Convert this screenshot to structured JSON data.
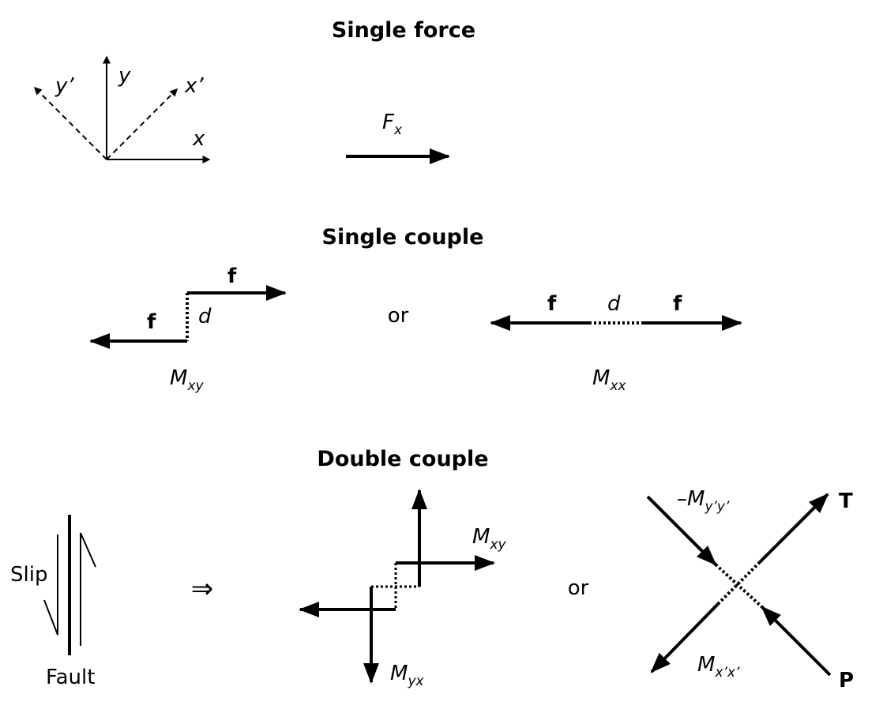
{
  "headings": {
    "single_force": "Single force",
    "single_couple": "Single couple",
    "double_couple": "Double couple"
  },
  "axes": {
    "y_prime": "y’",
    "y": "y",
    "x_prime": "x’",
    "x": "x"
  },
  "force": {
    "main": "F",
    "sub": "x"
  },
  "single_couple": {
    "f_label": "f",
    "d_label": "d",
    "or_label": "or",
    "mxy_main": "M",
    "mxy_sub": "xy",
    "mxx_main": "M",
    "mxx_sub": "xx"
  },
  "double_couple": {
    "slip_label": "Slip",
    "fault_label": "Fault",
    "implies_symbol": "⇒",
    "or_label": "or",
    "mxy_main": "M",
    "mxy_sub": "xy",
    "myx_main": "M",
    "myx_sub": "yx",
    "neg_myy_main": "–M",
    "neg_myy_sub": "y’y’",
    "mxx_main": "M",
    "mxx_sub": "x’x’",
    "t_label": "T",
    "p_label": "P"
  },
  "colors": {
    "ink": "#000000",
    "background": "#ffffff"
  }
}
